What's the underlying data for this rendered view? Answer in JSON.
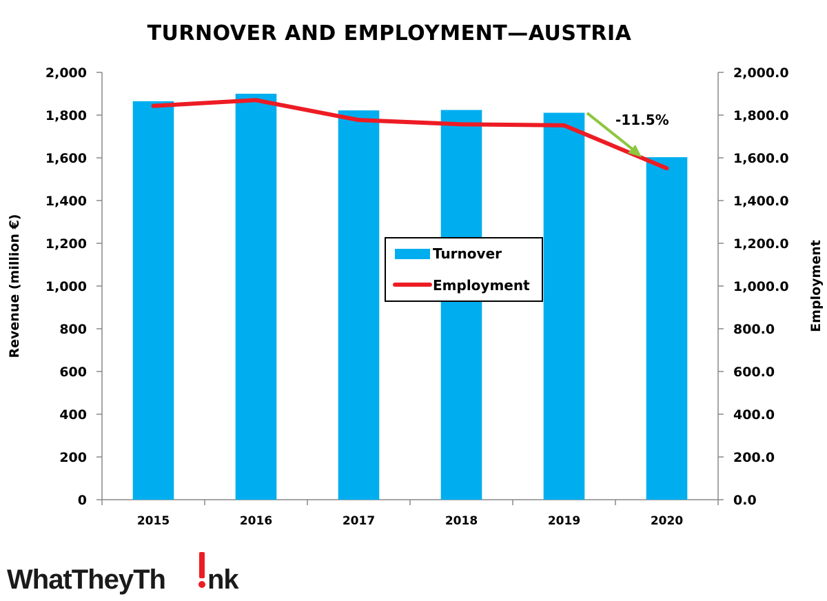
{
  "chart_data": {
    "type": "bar",
    "title": "TURNOVER AND EMPLOYMENT—AUSTRIA",
    "categories": [
      "2015",
      "2016",
      "2017",
      "2018",
      "2019",
      "2020"
    ],
    "series": [
      {
        "name": "Turnover",
        "type": "bar",
        "axis": "left",
        "color": "#00aeef",
        "values": [
          1865,
          1900,
          1822,
          1824,
          1811,
          1603
        ]
      },
      {
        "name": "Employment",
        "type": "line",
        "axis": "right",
        "color": "#ed1c24",
        "values": [
          1843,
          1870,
          1777,
          1757,
          1752,
          1551
        ]
      }
    ],
    "ylabel": "Revenue (million €)",
    "y2label": "Employment",
    "ylim": [
      0,
      2000
    ],
    "y2lim": [
      0,
      2000
    ],
    "yticks": [
      "0",
      "200",
      "400",
      "600",
      "800",
      "1,000",
      "1,200",
      "1,400",
      "1,600",
      "1,800",
      "2,000"
    ],
    "y2ticks": [
      "0.0",
      "200.0",
      "400.0",
      "600.0",
      "800.0",
      "1,000.0",
      "1,200.0",
      "1,400.0",
      "1,600.0",
      "1,800.0",
      "2,000.0"
    ],
    "grid": false,
    "legend": {
      "placement": "center",
      "entries": [
        "Turnover",
        "Employment"
      ]
    },
    "annotation": {
      "text": "-11.5%",
      "arrow_color": "#8dc63f"
    }
  },
  "logo": {
    "text": "WhatTheyThink",
    "part1": "WhatTheyTh",
    "part2": "nk",
    "accent_color": "#ed1c24"
  }
}
